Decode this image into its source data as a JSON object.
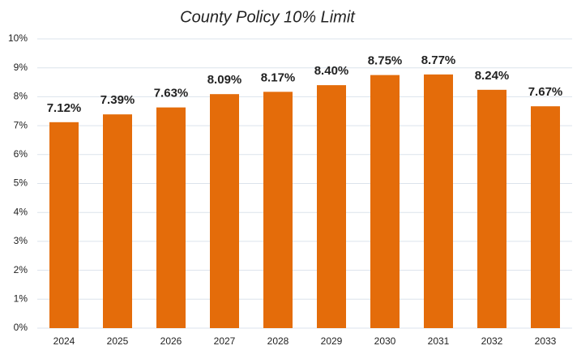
{
  "chart_data": {
    "type": "bar",
    "title": "County Policy 10% Limit",
    "categories": [
      "2024",
      "2025",
      "2026",
      "2027",
      "2028",
      "2029",
      "2030",
      "2031",
      "2032",
      "2033"
    ],
    "values": [
      7.12,
      7.39,
      7.63,
      8.09,
      8.17,
      8.4,
      8.75,
      8.77,
      8.24,
      7.67
    ],
    "value_labels": [
      "7.12%",
      "7.39%",
      "7.63%",
      "8.09%",
      "8.17%",
      "8.40%",
      "8.75%",
      "8.77%",
      "8.24%",
      "7.67%"
    ],
    "color": "#e46c0a",
    "ylim": [
      0,
      10
    ],
    "yticks": [
      {
        "value": 0,
        "label": "0%"
      },
      {
        "value": 1,
        "label": "1%"
      },
      {
        "value": 2,
        "label": "2%"
      },
      {
        "value": 3,
        "label": "3%"
      },
      {
        "value": 4,
        "label": "4%"
      },
      {
        "value": 5,
        "label": "5%"
      },
      {
        "value": 6,
        "label": "6%"
      },
      {
        "value": 7,
        "label": "7%"
      },
      {
        "value": 8,
        "label": "8%"
      },
      {
        "value": 9,
        "label": "9%"
      },
      {
        "value": 10,
        "label": "10%"
      }
    ],
    "grid": true
  }
}
